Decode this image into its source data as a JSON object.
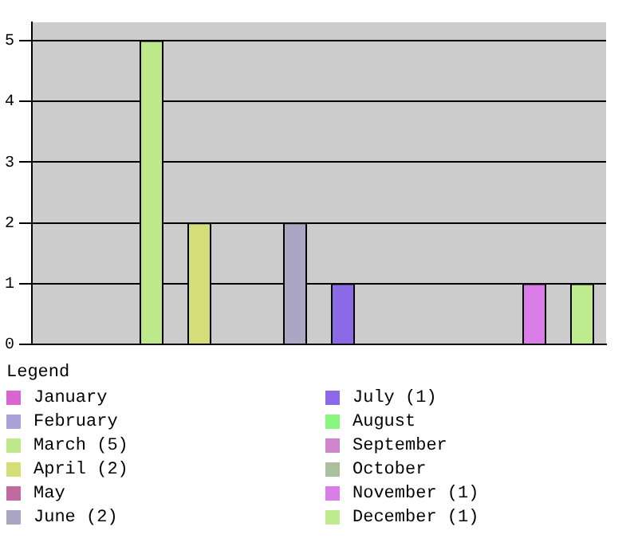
{
  "chart_data": {
    "type": "bar",
    "legend_title": "Legend",
    "legend": "bottom",
    "grid": "y",
    "tick_labels": "y",
    "categories": [
      null,
      null,
      null,
      null,
      null,
      null,
      null,
      null,
      null,
      null,
      null,
      null
    ],
    "series": [
      {
        "name": "January",
        "color": "#d966d0",
        "values": [
          0,
          null,
          null,
          null,
          null,
          null,
          null,
          null,
          null,
          null,
          null,
          null
        ]
      },
      {
        "name": "February",
        "color": "#a8a3d9",
        "values": [
          null,
          0,
          null,
          null,
          null,
          null,
          null,
          null,
          null,
          null,
          null,
          null
        ]
      },
      {
        "name": "March (5)",
        "color": "#bde98a",
        "values": [
          null,
          null,
          5,
          null,
          null,
          null,
          null,
          null,
          null,
          null,
          null,
          null
        ]
      },
      {
        "name": "April (2)",
        "color": "#d4dd77",
        "values": [
          null,
          null,
          null,
          2,
          null,
          null,
          null,
          null,
          null,
          null,
          null,
          null
        ]
      },
      {
        "name": "May",
        "color": "#c06aa0",
        "values": [
          null,
          null,
          null,
          null,
          0,
          null,
          null,
          null,
          null,
          null,
          null,
          null
        ]
      },
      {
        "name": "June (2)",
        "color": "#aba6c4",
        "values": [
          null,
          null,
          null,
          null,
          null,
          2,
          null,
          null,
          null,
          null,
          null,
          null
        ]
      },
      {
        "name": "July (1)",
        "color": "#8c69e6",
        "values": [
          null,
          null,
          null,
          null,
          null,
          null,
          1,
          null,
          null,
          null,
          null,
          null
        ]
      },
      {
        "name": "August",
        "color": "#88f57f",
        "values": [
          null,
          null,
          null,
          null,
          null,
          null,
          null,
          0,
          null,
          null,
          null,
          null
        ]
      },
      {
        "name": "September",
        "color": "#cd85cc",
        "values": [
          null,
          null,
          null,
          null,
          null,
          null,
          null,
          null,
          0,
          null,
          null,
          null
        ]
      },
      {
        "name": "October",
        "color": "#aabf9c",
        "values": [
          null,
          null,
          null,
          null,
          null,
          null,
          null,
          null,
          null,
          0,
          null,
          null
        ]
      },
      {
        "name": "November (1)",
        "color": "#da7de8",
        "values": [
          null,
          null,
          null,
          null,
          null,
          null,
          null,
          null,
          null,
          null,
          1,
          null
        ]
      },
      {
        "name": "December (1)",
        "color": "#bfeb8f",
        "values": [
          null,
          null,
          null,
          null,
          null,
          null,
          null,
          null,
          null,
          null,
          null,
          1
        ]
      }
    ],
    "ylim": [
      0,
      5.3
    ],
    "yticks": [
      0,
      1,
      2,
      3,
      4,
      5
    ]
  }
}
